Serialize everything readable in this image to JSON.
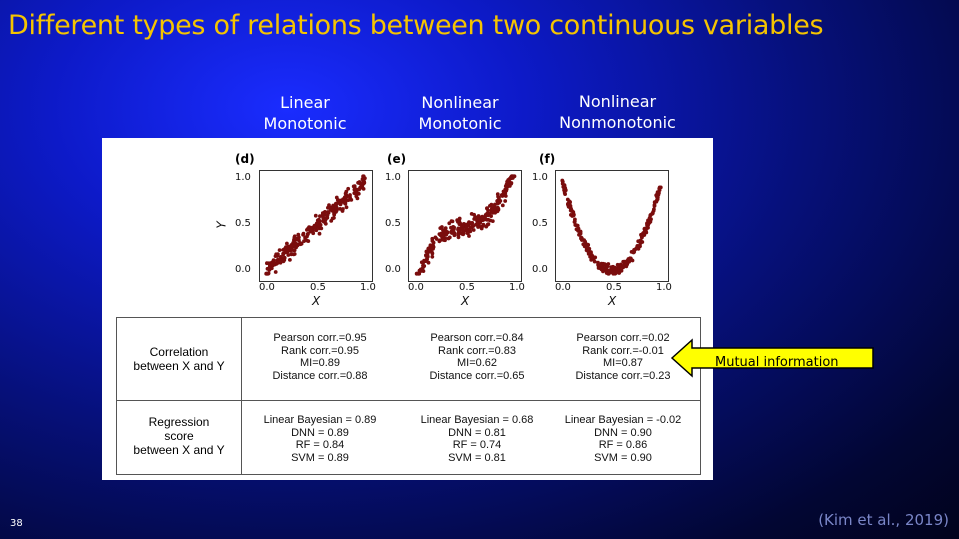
{
  "title": "Different types of relations between two continuous variables",
  "columns": [
    {
      "line1": "Linear",
      "line2": "Monotonic"
    },
    {
      "line1": "Nonlinear",
      "line2": "Monotonic"
    },
    {
      "line1": "Nonlinear",
      "line2": "Nonmonotonic"
    }
  ],
  "plots": [
    {
      "label": "(d)",
      "kind": "linear"
    },
    {
      "label": "(e)",
      "kind": "cubic"
    },
    {
      "label": "(f)",
      "kind": "parabola"
    }
  ],
  "axes": {
    "ylabel": "Y",
    "xlabel": "X",
    "xticks": [
      "0.0",
      "0.5",
      "1.0"
    ],
    "yticks": [
      "1.0",
      "0.5",
      "0.0"
    ]
  },
  "table": {
    "row1_header": [
      "Correlation",
      "between X and Y"
    ],
    "row2_header": [
      "Regression",
      "score",
      "between X and Y"
    ],
    "correlation": [
      [
        "Pearson corr.=0.95",
        "Rank corr.=0.95",
        "MI=0.89",
        "Distance corr.=0.88"
      ],
      [
        "Pearson corr.=0.84",
        "Rank corr.=0.83",
        "MI=0.62",
        "Distance corr.=0.65"
      ],
      [
        "Pearson corr.=0.02",
        "Rank corr.=-0.01",
        "MI=0.87",
        "Distance corr.=0.23"
      ]
    ],
    "regression": [
      [
        "Linear Bayesian = 0.89",
        "DNN = 0.89",
        "RF = 0.84",
        "SVM = 0.89"
      ],
      [
        "Linear Bayesian = 0.68",
        "DNN = 0.81",
        "RF = 0.74",
        "SVM = 0.81"
      ],
      [
        "Linear Bayesian = -0.02",
        "DNN = 0.90",
        "RF = 0.86",
        "SVM = 0.90"
      ]
    ]
  },
  "callout": {
    "text": "Mutual information",
    "color": "#ffff00"
  },
  "slide_number": "38",
  "citation": "(Kim et al., 2019)",
  "colors": {
    "title": "#f5c400",
    "dots": "#7a0d0d"
  }
}
